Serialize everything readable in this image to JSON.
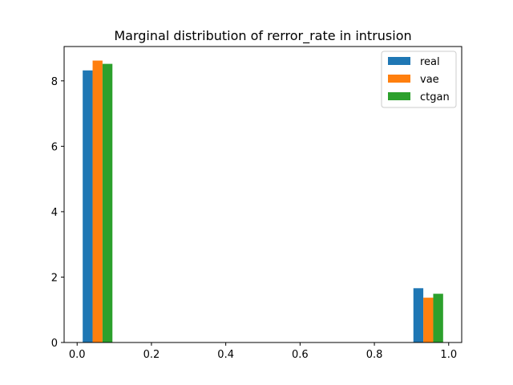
{
  "chart_data": {
    "type": "bar",
    "title": "Marginal distribution of rerror_rate in intrusion",
    "xlabel": "",
    "ylabel": "",
    "xlim": [
      -0.035,
      1.035
    ],
    "ylim": [
      0,
      9.05
    ],
    "xticks": [
      0.0,
      0.2,
      0.4,
      0.6,
      0.8,
      1.0
    ],
    "xtick_labels": [
      "0.0",
      "0.2",
      "0.4",
      "0.6",
      "0.8",
      "1.0"
    ],
    "yticks": [
      0,
      2,
      4,
      6,
      8
    ],
    "ytick_labels": [
      "0",
      "2",
      "4",
      "6",
      "8"
    ],
    "grid": false,
    "legend": "top-right",
    "bins": [
      {
        "start": 0.015,
        "end": 0.095
      },
      {
        "start": 0.905,
        "end": 0.985
      }
    ],
    "series": [
      {
        "name": "real",
        "color": "#1f77b4",
        "values": [
          8.32,
          1.66
        ]
      },
      {
        "name": "vae",
        "color": "#ff7f0e",
        "values": [
          8.62,
          1.37
        ]
      },
      {
        "name": "ctgan",
        "color": "#2ca02c",
        "values": [
          8.52,
          1.49
        ]
      }
    ]
  }
}
